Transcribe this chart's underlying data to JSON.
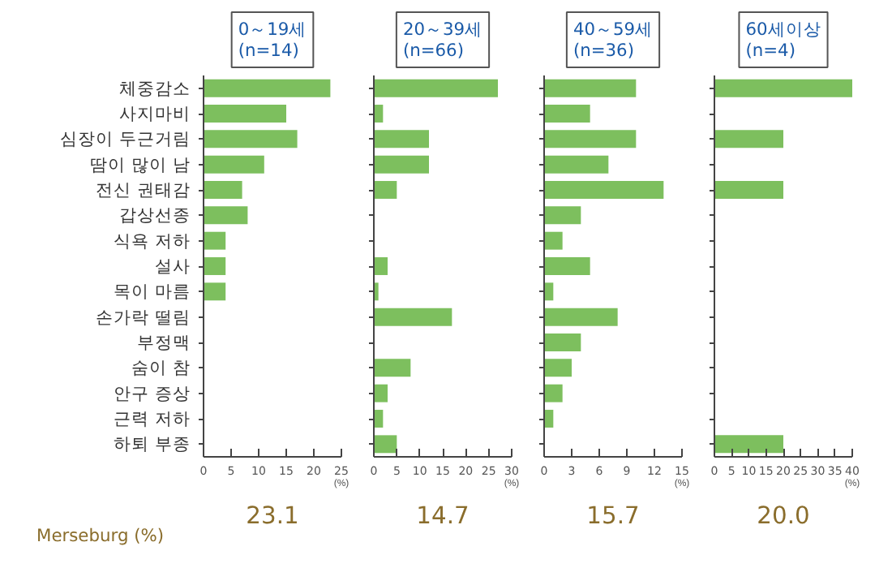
{
  "chart_data": [
    {
      "type": "bar",
      "orientation": "horizontal",
      "title": "0～19세",
      "subtitle": "(n=14)",
      "xlabel": "(%)",
      "categories": [
        "체중감소",
        "사지마비",
        "심장이 두근거림",
        "땀이 많이 남",
        "전신 권태감",
        "갑상선종",
        "식욕 저하",
        "설사",
        "목이 마름",
        "손가락 떨림",
        "부정맥",
        "숨이 참",
        "안구 증상",
        "근력 저하",
        "하퇴 부종"
      ],
      "values": [
        23,
        15,
        17,
        11,
        7,
        8,
        4,
        4,
        4,
        null,
        null,
        null,
        null,
        null,
        null
      ],
      "color": "#7dbf5e",
      "xlim": [
        0,
        25
      ],
      "xticks": [
        0,
        5,
        10,
        15,
        20,
        25
      ],
      "annotations": [
        "Merseburg (%)",
        "23.1"
      ]
    },
    {
      "type": "bar",
      "orientation": "horizontal",
      "title": "20～39세",
      "subtitle": "(n=66)",
      "xlabel": "(%)",
      "categories": [
        null,
        null,
        null,
        null,
        null,
        null,
        null,
        null,
        null,
        null,
        null,
        null,
        null,
        null,
        null
      ],
      "values": [
        27,
        2,
        12,
        12,
        5,
        null,
        null,
        3,
        1,
        17,
        null,
        8,
        3,
        2,
        5
      ],
      "color": "#7dbf5e",
      "xlim": [
        0,
        30
      ],
      "xticks": [
        0,
        5,
        10,
        15,
        20,
        25,
        30
      ],
      "tick_labels": "x",
      "annotations": [
        "14.7"
      ]
    },
    {
      "type": "bar",
      "orientation": "horizontal",
      "title": "40～59세",
      "subtitle": "(n=36)",
      "xlabel": "(%)",
      "categories": [
        null,
        null,
        null,
        null,
        null,
        null,
        null,
        null,
        null,
        null,
        null,
        null,
        null,
        null,
        null
      ],
      "values": [
        10,
        5,
        10,
        7,
        13,
        4,
        2,
        5,
        1,
        8,
        4,
        3,
        2,
        1,
        null
      ],
      "color": "#7dbf5e",
      "xlim": [
        0,
        15
      ],
      "xticks": [
        0,
        3,
        6,
        9,
        12,
        15
      ],
      "tick_labels": "x",
      "annotations": [
        "15.7"
      ]
    },
    {
      "type": "bar",
      "orientation": "horizontal",
      "title": "60세이상",
      "subtitle": "(n=4)",
      "xlabel": "(%)",
      "categories": [
        null,
        null,
        null,
        null,
        null,
        null,
        null,
        null,
        null,
        null,
        null,
        null,
        null,
        null,
        null
      ],
      "values": [
        40,
        null,
        20,
        null,
        20,
        null,
        null,
        null,
        null,
        null,
        null,
        null,
        null,
        null,
        20
      ],
      "color": "#7dbf5e",
      "xlim": [
        0,
        40
      ],
      "xticks": [
        0,
        5,
        10,
        15,
        20,
        25,
        30,
        35,
        40
      ],
      "tick_labels": "x",
      "annotations": [
        "20.0"
      ]
    }
  ]
}
